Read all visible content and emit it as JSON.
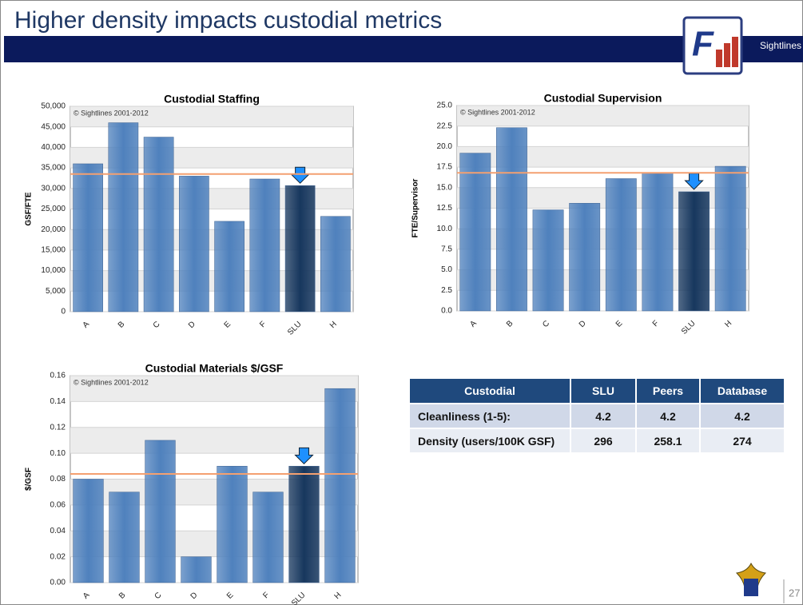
{
  "header": {
    "title": "Higher density impacts custodial metrics",
    "brand": "Sightlines"
  },
  "chart_data": [
    {
      "type": "bar",
      "title": "Custodial Staffing",
      "note": "© Sightlines 2001-2012",
      "y_label": "GSF/FTE",
      "categories": [
        "A",
        "B",
        "C",
        "D",
        "E",
        "F",
        "SLU",
        "H"
      ],
      "values": [
        36000,
        46000,
        42500,
        33000,
        22000,
        32300,
        30700,
        23200
      ],
      "color": "#4f81bd",
      "highlight": "SLU",
      "highlight_color": "#17375e",
      "reference_line": 33500,
      "reference_color": "#f4a070",
      "ylim": [
        0,
        50000
      ],
      "yticks": [
        0,
        {
          "value": 5000,
          "label": "5,000"
        },
        {
          "value": 10000,
          "label": "10,000"
        },
        {
          "value": 15000,
          "label": "15,000"
        },
        {
          "value": 20000,
          "label": "20,000"
        },
        {
          "value": 25000,
          "label": "25,000"
        },
        {
          "value": 30000,
          "label": "30,000"
        },
        {
          "value": 35000,
          "label": "35,000"
        },
        {
          "value": 40000,
          "label": "40,000"
        },
        {
          "value": 45000,
          "label": "45,000"
        },
        {
          "value": 50000,
          "label": "50,000"
        }
      ],
      "grid": true
    },
    {
      "type": "bar",
      "title": "Custodial  Supervision",
      "note": "© Sightlines 2001-2012",
      "y_label": "FTE/Supervisor",
      "categories": [
        "A",
        "B",
        "C",
        "D",
        "E",
        "F",
        "SLU",
        "H"
      ],
      "values": [
        19.2,
        22.3,
        12.3,
        13.1,
        16.1,
        16.8,
        14.5,
        17.6
      ],
      "color": "#4f81bd",
      "highlight": "SLU",
      "highlight_color": "#17375e",
      "reference_line": 16.8,
      "reference_color": "#f4a070",
      "ylim": [
        0,
        25
      ],
      "yticks": [
        {
          "value": 0,
          "label": "0.0"
        },
        2.5,
        {
          "value": 5,
          "label": "5.0"
        },
        7.5,
        {
          "value": 10,
          "label": "10.0"
        },
        12.5,
        {
          "value": 15,
          "label": "15.0"
        },
        17.5,
        {
          "value": 20,
          "label": "20.0"
        },
        22.5,
        {
          "value": 25,
          "label": "25.0"
        }
      ],
      "grid": true
    },
    {
      "type": "bar",
      "title": "Custodial Materials $/GSF",
      "note": "© Sightlines 2001-2012",
      "y_label": "$/GSF",
      "categories": [
        "A",
        "B",
        "C",
        "D",
        "E",
        "F",
        "SLU",
        "H"
      ],
      "values": [
        0.08,
        0.07,
        0.11,
        0.02,
        0.09,
        0.07,
        0.09,
        0.15
      ],
      "color": "#4f81bd",
      "highlight": "SLU",
      "highlight_color": "#17375e",
      "reference_line": 0.084,
      "reference_color": "#f4a070",
      "ylim": [
        0,
        0.16
      ],
      "yticks": [
        {
          "value": 0,
          "label": "0.00"
        },
        0.02,
        0.04,
        0.06,
        0.08,
        {
          "value": 0.1,
          "label": "0.10"
        },
        0.12,
        0.14,
        0.16
      ],
      "grid": true
    }
  ],
  "table": {
    "header": [
      "Custodial",
      "SLU",
      "Peers",
      "Database"
    ],
    "rows": [
      [
        "Cleanliness (1-5):",
        4.2,
        4.2,
        4.2
      ],
      [
        "Density (users/100K GSF)",
        296,
        258.1,
        274
      ]
    ]
  },
  "footer": {
    "page": 27
  }
}
